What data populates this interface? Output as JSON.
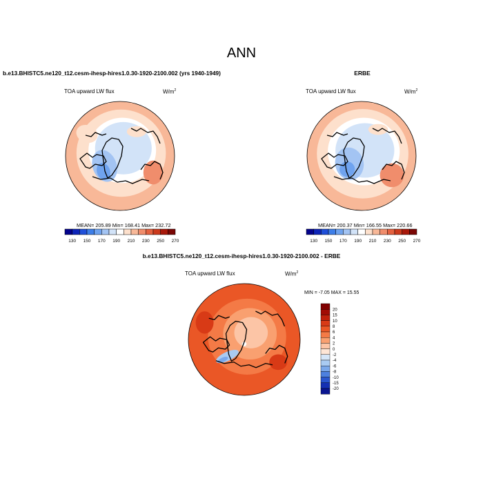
{
  "title": "ANN",
  "panels": [
    {
      "heading": "b.e13.BHISTC5.ne120_t12.cesm-ihesp-hires1.0.30-1920-2100.002 (yrs 1940-1949)",
      "variable": "TOA upward LW flux",
      "units_base": "W/m",
      "units_sup": "2",
      "stats": "MEAN= 205.89  Min= 168.41  Max= 232.72"
    },
    {
      "heading": "ERBE",
      "variable": "TOA upward LW flux",
      "units_base": "W/m",
      "units_sup": "2",
      "stats": "MEAN= 200.37  Min= 166.55  Max= 220.66"
    },
    {
      "heading": "b.e13.BHISTC5.ne120_t12.cesm-ihesp-hires1.0.30-1920-2100.002 - ERBE",
      "variable": "TOA upward LW flux",
      "units_base": "W/m",
      "units_sup": "2",
      "stats": "MIN =  -7.05 MAX =  15.55"
    }
  ],
  "chart_data": [
    {
      "type": "heatmap",
      "projection": "north-polar-stereographic",
      "field": "TOA upward LW flux",
      "mean": 205.89,
      "min": 168.41,
      "max": 232.72,
      "colorbar": {
        "orientation": "horizontal",
        "labels": [
          "130",
          "150",
          "170",
          "190",
          "210",
          "230",
          "250",
          "270"
        ],
        "colors": [
          "#03028c",
          "#0d24b8",
          "#1f4fd9",
          "#3d7ee8",
          "#6fa3ef",
          "#a3c4f3",
          "#d2e3f8",
          "#ffffff",
          "#fde0cc",
          "#f8b898",
          "#f08d6c",
          "#e4613f",
          "#cc3a1d",
          "#a8180a",
          "#7a0604"
        ]
      }
    },
    {
      "type": "heatmap",
      "projection": "north-polar-stereographic",
      "field": "TOA upward LW flux",
      "mean": 200.37,
      "min": 166.55,
      "max": 220.66,
      "colorbar": {
        "orientation": "horizontal",
        "labels": [
          "130",
          "150",
          "170",
          "190",
          "210",
          "230",
          "250",
          "270"
        ],
        "colors": [
          "#03028c",
          "#0d24b8",
          "#1f4fd9",
          "#3d7ee8",
          "#6fa3ef",
          "#a3c4f3",
          "#d2e3f8",
          "#ffffff",
          "#fde0cc",
          "#f8b898",
          "#f08d6c",
          "#e4613f",
          "#cc3a1d",
          "#a8180a",
          "#7a0604"
        ]
      }
    },
    {
      "type": "heatmap",
      "projection": "north-polar-stereographic",
      "field": "TOA upward LW flux (difference)",
      "min": -7.05,
      "max": 15.55,
      "colorbar": {
        "orientation": "vertical",
        "labels": [
          "20",
          "15",
          "10",
          "8",
          "6",
          "4",
          "2",
          "0",
          "-2",
          "-4",
          "-6",
          "-8",
          "-10",
          "-15",
          "-20"
        ],
        "colors": [
          "#800000",
          "#a10b05",
          "#c0200c",
          "#d83a16",
          "#ea5726",
          "#f47a46",
          "#f9a070",
          "#fcc5a6",
          "#fee6d6",
          "#d5e6f8",
          "#a9cbf2",
          "#7aa8ea",
          "#4d80df",
          "#2a56cf",
          "#1530b3",
          "#0a1590"
        ]
      }
    }
  ]
}
